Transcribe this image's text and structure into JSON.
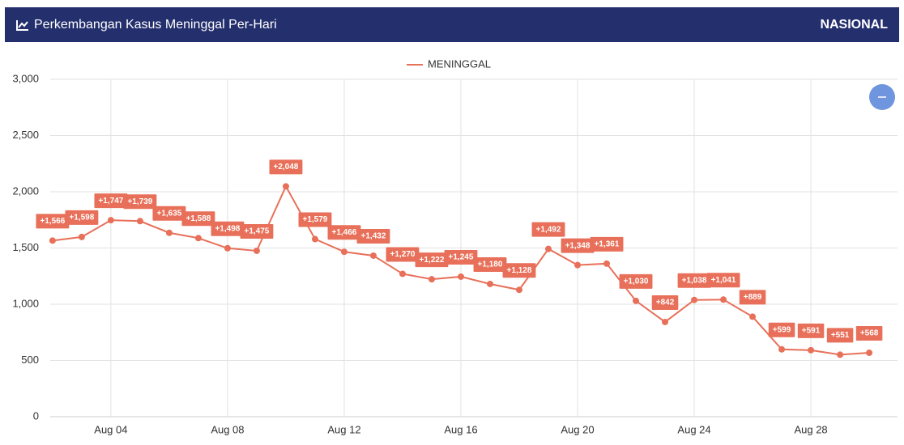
{
  "header": {
    "title": "Perkembangan Kasus Meninggal Per-Hari",
    "scope": "NASIONAL"
  },
  "chart_data": {
    "type": "line",
    "x": [
      2,
      3,
      4,
      5,
      6,
      7,
      8,
      9,
      10,
      11,
      12,
      13,
      14,
      15,
      16,
      17,
      18,
      19,
      20,
      21,
      22,
      23,
      24,
      25,
      26,
      27,
      28,
      29,
      30
    ],
    "series": [
      {
        "name": "MENINGGAL",
        "color": "#e8705a",
        "values": [
          1566,
          1598,
          1747,
          1739,
          1635,
          1588,
          1498,
          1475,
          2048,
          1579,
          1466,
          1432,
          1270,
          1222,
          1245,
          1180,
          1128,
          1492,
          1348,
          1361,
          1030,
          842,
          1038,
          1041,
          889,
          599,
          591,
          551,
          568
        ],
        "value_labels": [
          "+1,566",
          "+1,598",
          "+1,747",
          "+1,739",
          "+1,635",
          "+1,588",
          "+1,498",
          "+1,475",
          "+2,048",
          "+1,579",
          "+1,466",
          "+1,432",
          "+1,270",
          "+1,222",
          "+1,245",
          "+1,180",
          "+1,128",
          "+1,492",
          "+1,348",
          "+1,361",
          "+1,030",
          "+842",
          "+1,038",
          "+1,041",
          "+889",
          "+599",
          "+591",
          "+551",
          "+568"
        ]
      }
    ],
    "xlim": [
      1.92,
      30.97
    ],
    "xticks": [
      {
        "value": 4,
        "label": "Aug 04"
      },
      {
        "value": 8,
        "label": "Aug 08"
      },
      {
        "value": 12,
        "label": "Aug 12"
      },
      {
        "value": 16,
        "label": "Aug 16"
      },
      {
        "value": 20,
        "label": "Aug 20"
      },
      {
        "value": 24,
        "label": "Aug 24"
      },
      {
        "value": 28,
        "label": "Aug 28"
      }
    ],
    "ylim": [
      0,
      3000
    ],
    "yticks": [
      0,
      {
        "value": 500,
        "label": "500"
      },
      {
        "value": 1000,
        "label": "1,000"
      },
      {
        "value": 1500,
        "label": "1,500"
      },
      {
        "value": 2000,
        "label": "2,000"
      },
      {
        "value": 2500,
        "label": "2,500"
      },
      {
        "value": 3000,
        "label": "3,000"
      }
    ],
    "grid": true,
    "legend": "top"
  }
}
